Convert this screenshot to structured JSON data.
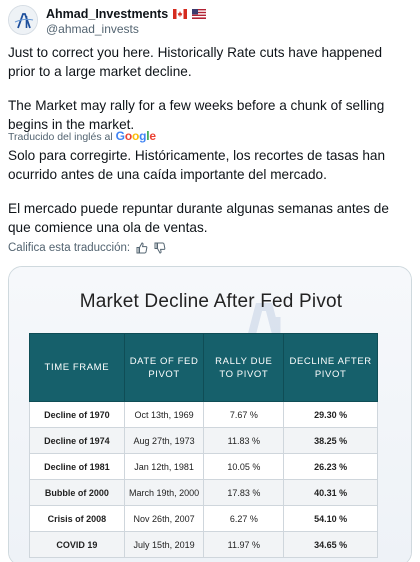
{
  "author": {
    "display_name": "Ahmad_Investments",
    "handle": "@ahmad_invests",
    "flags": [
      "canada-flag-icon",
      "us-flag-icon"
    ]
  },
  "tweet": {
    "para1": "Just to correct you here. Historically Rate cuts have happened prior to a large market decline.",
    "para2": "The Market may rally for a few weeks before a chunk of selling begins in the market."
  },
  "translation": {
    "label": "Traducido del inglés al",
    "provider": "Google",
    "para1": "Solo para corregirte. Históricamente, los recortes de tasas han ocurrido antes de una caída importante del mercado.",
    "para2": "El mercado puede repuntar durante algunas semanas antes de que comience una ola de ventas."
  },
  "rate": {
    "label": "Califica esta traducción:"
  },
  "image": {
    "title": "Market Decline After Fed Pivot",
    "headers": [
      "TIME FRAME",
      "DATE OF FED PIVOT",
      "RALLY DUE TO PIVOT",
      "DECLINE AFTER PIVOT"
    ],
    "rows": [
      {
        "frame": "Decline of 1970",
        "date": "Oct 13th, 1969",
        "rally": "7.67 %",
        "decline": "29.30 %"
      },
      {
        "frame": "Decline of 1974",
        "date": "Aug 27th, 1973",
        "rally": "11.83 %",
        "decline": "38.25 %"
      },
      {
        "frame": "Decline of 1981",
        "date": "Jan 12th, 1981",
        "rally": "10.05 %",
        "decline": "26.23 %"
      },
      {
        "frame": "Bubble of 2000",
        "date": "March 19th,  2000",
        "rally": "17.83 %",
        "decline": "40.31 %"
      },
      {
        "frame": "Crisis of 2008",
        "date": "Nov 26th, 2007",
        "rally": "6.27 %",
        "decline": "54.10 %"
      },
      {
        "frame": "COVID 19",
        "date": "July 15th, 2019",
        "rally": "11.97 %",
        "decline": "34.65 %"
      }
    ]
  },
  "colors": {
    "header_teal": "#16606b",
    "decline_red": "#d11a2a",
    "muted_gray": "#536471"
  }
}
